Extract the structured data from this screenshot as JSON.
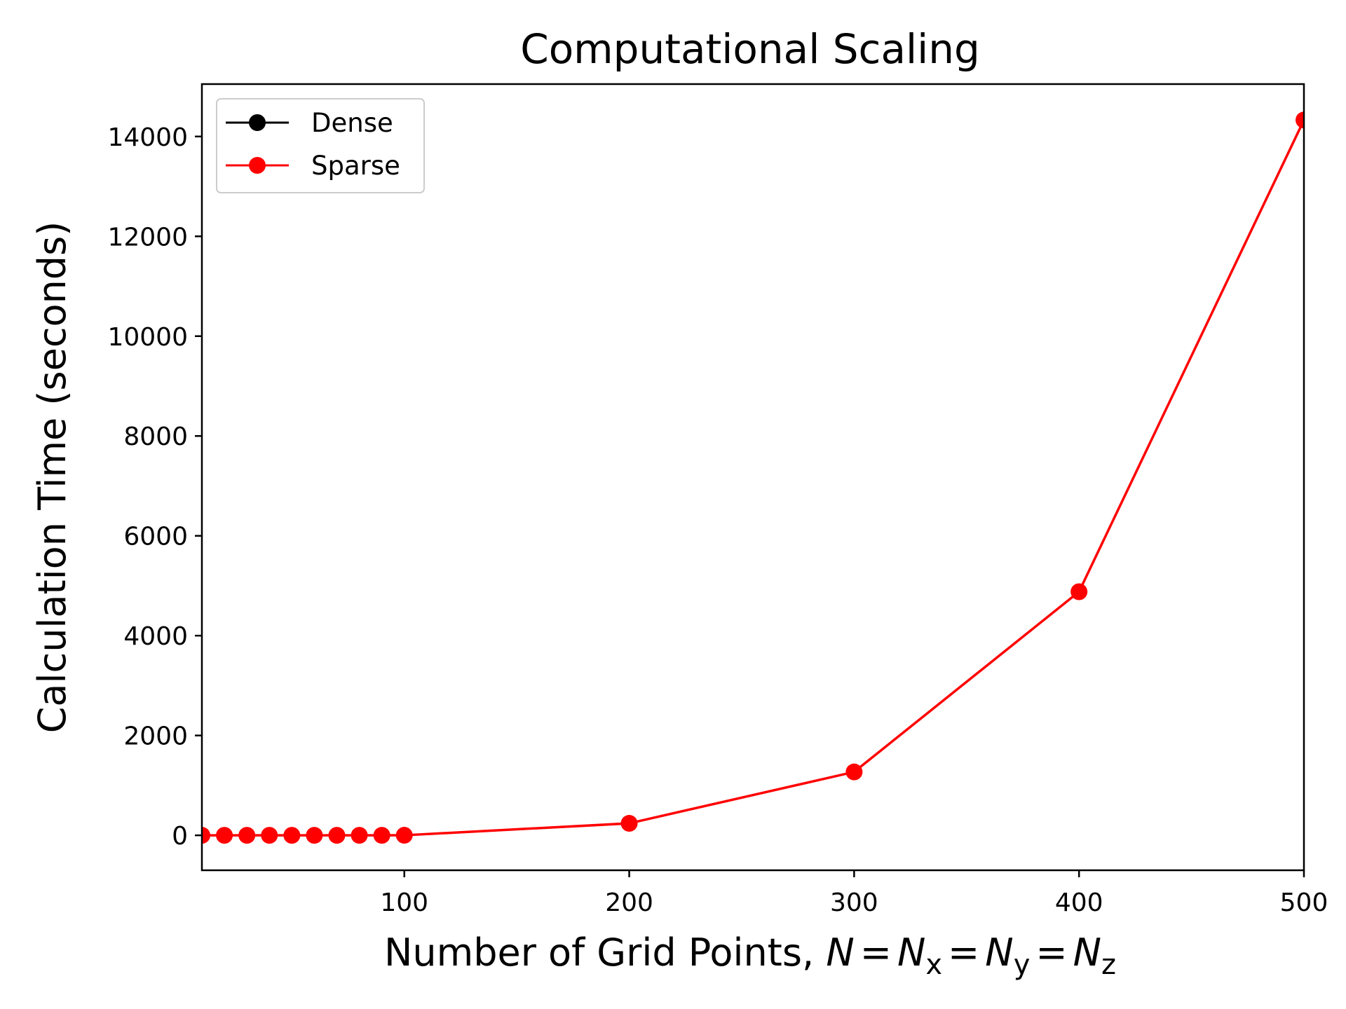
{
  "chart_data": {
    "type": "line",
    "title": "Computational Scaling",
    "xlabel_text": "Number of Grid Points, ",
    "xlabel_math": {
      "var": "N",
      "eq": "=",
      "sub_x": "x",
      "sub_y": "y",
      "sub_z": "z"
    },
    "ylabel": "Calculation Time (seconds)",
    "xlim": [
      10,
      500
    ],
    "ylim": [
      -700,
      15050
    ],
    "x_ticks": [
      100,
      200,
      300,
      400,
      500
    ],
    "y_ticks": [
      0,
      2000,
      4000,
      6000,
      8000,
      10000,
      12000,
      14000
    ],
    "grid": false,
    "legend_position": "upper-left",
    "series": [
      {
        "name": "Dense",
        "color": "#000000",
        "x": [],
        "y": []
      },
      {
        "name": "Sparse",
        "color": "#ff0000",
        "x": [
          10,
          20,
          30,
          40,
          50,
          60,
          70,
          80,
          90,
          100,
          200,
          300,
          400,
          500
        ],
        "y": [
          0,
          0,
          0,
          0,
          0,
          0,
          0,
          0,
          0,
          1,
          240,
          1270,
          4880,
          14330
        ]
      }
    ]
  }
}
